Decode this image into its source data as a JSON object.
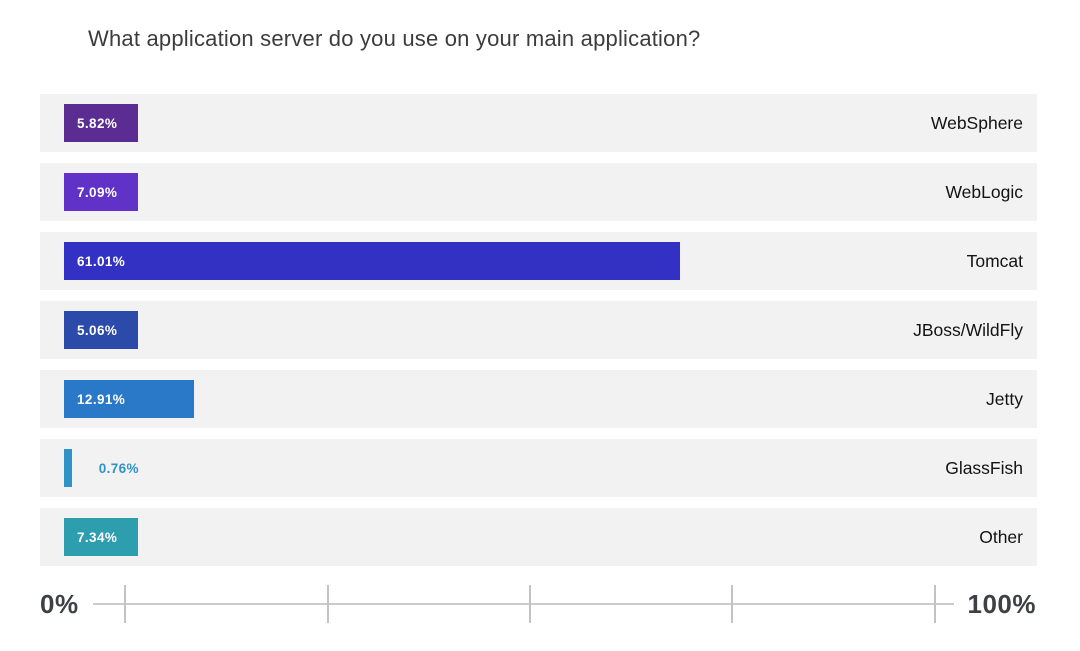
{
  "title": "What application server do you use on your main application?",
  "chart_data": {
    "type": "bar",
    "orientation": "horizontal",
    "title": "What application server do you use on your main application?",
    "categories": [
      "WebSphere",
      "WebLogic",
      "Tomcat",
      "JBoss/WildFly",
      "Jetty",
      "GlassFish",
      "Other"
    ],
    "values": [
      5.82,
      7.09,
      61.01,
      5.06,
      12.91,
      0.76,
      7.34
    ],
    "value_labels": [
      "5.82%",
      "7.09%",
      "61.01%",
      "5.06%",
      "12.91%",
      "0.76%",
      "7.34%"
    ],
    "value_label_positions": [
      "inside",
      "inside",
      "inside",
      "inside",
      "inside",
      "outside",
      "inside"
    ],
    "bar_colors": [
      "#5b2d92",
      "#6132c8",
      "#3231c4",
      "#2b4aa9",
      "#2a78c8",
      "#3093c5",
      "#2d9ead"
    ],
    "row_background": "#f2f2f3",
    "xlim": [
      0,
      100
    ],
    "xlabel": "",
    "ylabel": "",
    "grid": "off",
    "legend": "none",
    "axis": {
      "min_label": "0%",
      "max_label": "100%",
      "tick_count": 5
    }
  }
}
